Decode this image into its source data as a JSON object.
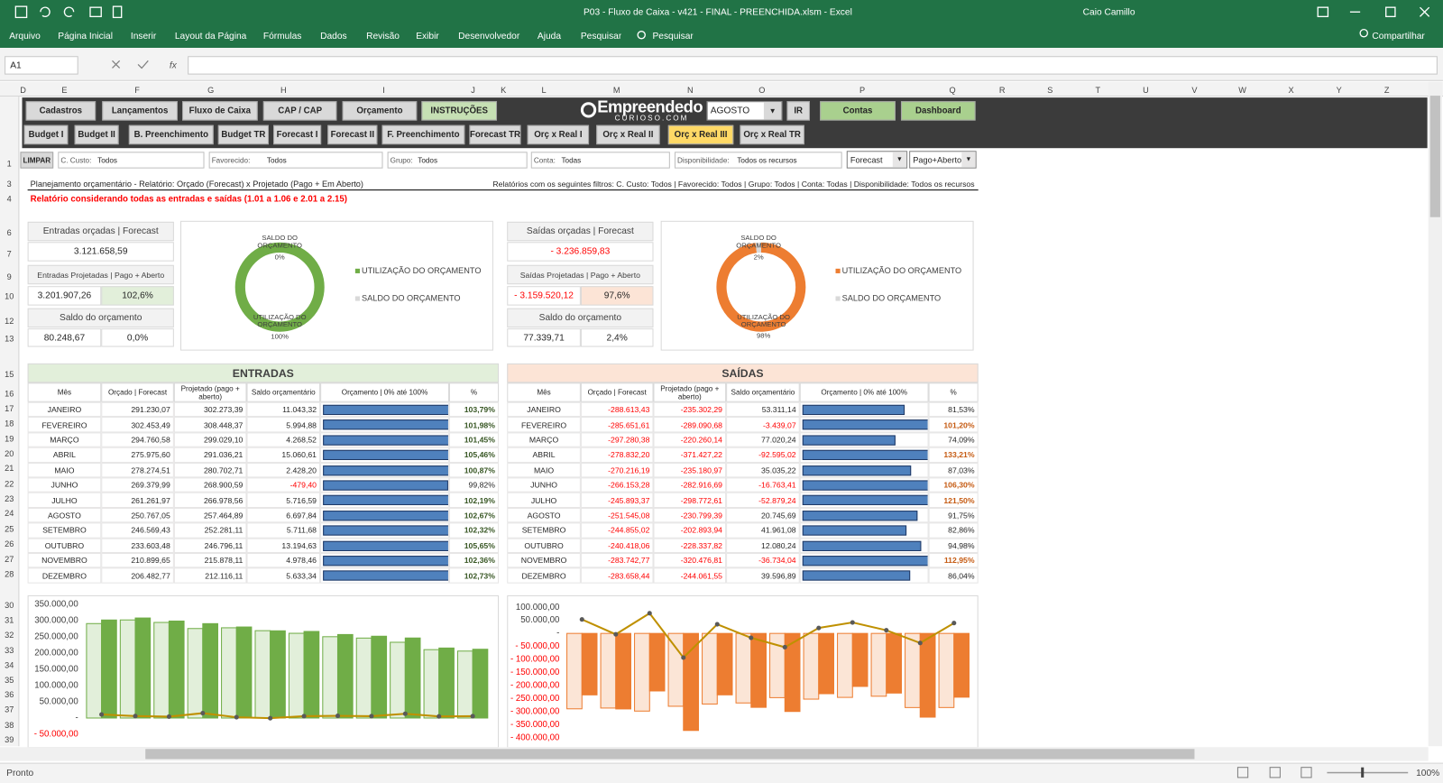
{
  "window": {
    "title": "P03 - Fluxo de Caixa - v421 - FINAL - PREENCHIDA.xlsm - Excel",
    "user": "Caio Camillo"
  },
  "ribbon": {
    "tabs": [
      "Arquivo",
      "Página Inicial",
      "Inserir",
      "Layout da Página",
      "Fórmulas",
      "Dados",
      "Revisão",
      "Exibir",
      "Desenvolvedor",
      "Ajuda",
      "Pesquisar",
      "Pesquisar"
    ],
    "share": "Compartilhar"
  },
  "formula_bar": {
    "name_box": "A1",
    "fx": "fx"
  },
  "sheet": {
    "columns": [
      "D",
      "E",
      "F",
      "G",
      "H",
      "I",
      "J",
      "K",
      "L",
      "M",
      "N",
      "O",
      "P",
      "Q",
      "R",
      "S",
      "T",
      "U",
      "V",
      "W",
      "X",
      "Y",
      "Z"
    ],
    "rows": [
      1,
      3,
      4,
      6,
      7,
      9,
      10,
      12,
      13,
      15,
      16,
      17,
      18,
      19,
      20,
      21,
      22,
      23,
      24,
      25,
      26,
      27,
      28,
      30,
      31,
      32,
      33,
      34,
      35,
      36,
      37,
      38,
      39
    ]
  },
  "nav": {
    "row1": [
      "Cadastros",
      "Lançamentos",
      "Fluxo de Caixa",
      "CAP / CAP",
      "Orçamento",
      "INSTRUÇÕES"
    ],
    "logo": "Empreendedor",
    "logo_sub": "CURIOSO.COM",
    "month": "AGOSTO",
    "go": "IR",
    "row1_right": [
      "Contas",
      "Dashboard"
    ],
    "row2": [
      "Budget I",
      "Budget II",
      "B. Preenchimento",
      "Budget TR",
      "Forecast I",
      "Forecast II",
      "F. Preenchimento",
      "Forecast TR",
      "Orç x Real I",
      "Orç x Real II",
      "Orç x Real III",
      "Orç x Real TR"
    ]
  },
  "filters": {
    "clear": "LIMPAR",
    "items": [
      {
        "label": "C. Custo:",
        "value": "Todos"
      },
      {
        "label": "Favorecido:",
        "value": "Todos"
      },
      {
        "label": "Grupo:",
        "value": "Todos"
      },
      {
        "label": "Conta:",
        "value": "Todas"
      },
      {
        "label": "Disponibilidade:",
        "value": "Todos os recursos"
      }
    ],
    "type": "Forecast",
    "status": "Pago+Aberto"
  },
  "report": {
    "title": "Planejamento orçamentário - Relatório: Orçado (Forecast) x Projetado (Pago + Em Aberto)",
    "filters_note": "Relatórios com os seguintes filtros: C. Custo: Todos | Favorecido: Todos | Grupo: Todos | Conta: Todas | Disponibilidade: Todos os recursos",
    "note": "Relatório considerando todas as entradas e saídas (1.01 a 1.06 e 2.01 a 2.15)"
  },
  "entradas_summary": {
    "budget_label": "Entradas orçadas | Forecast",
    "budget": "3.121.658,59",
    "projected_label": "Entradas Projetadas | Pago + Aberto",
    "projected": "3.201.907,26",
    "projected_pct": "102,6%",
    "balance_label": "Saldo do orçamento",
    "balance": "80.248,67",
    "balance_pct": "0,0%"
  },
  "saidas_summary": {
    "budget_label": "Saídas orçadas | Forecast",
    "budget": "- 3.236.859,83",
    "projected_label": "Saídas Projetadas | Pago + Aberto",
    "projected": "- 3.159.520,12",
    "projected_pct": "97,6%",
    "balance_label": "Saldo do orçamento",
    "balance": "77.339,71",
    "balance_pct": "2,4%"
  },
  "entradas_table": {
    "title": "ENTRADAS",
    "headers": [
      "Mês",
      "Orçado | Forecast",
      "Projetado (pago + aberto)",
      "Saldo orçamentário",
      "Orçamento | 0% até 100%",
      "%"
    ],
    "rows": [
      [
        "JANEIRO",
        "291.230,07",
        "302.273,39",
        "11.043,32",
        "103,79%"
      ],
      [
        "FEVEREIRO",
        "302.453,49",
        "308.448,37",
        "5.994,88",
        "101,98%"
      ],
      [
        "MARÇO",
        "294.760,58",
        "299.029,10",
        "4.268,52",
        "101,45%"
      ],
      [
        "ABRIL",
        "275.975,60",
        "291.036,21",
        "15.060,61",
        "105,46%"
      ],
      [
        "MAIO",
        "278.274,51",
        "280.702,71",
        "2.428,20",
        "100,87%"
      ],
      [
        "JUNHO",
        "269.379,99",
        "268.900,59",
        "-479,40",
        "99,82%"
      ],
      [
        "JULHO",
        "261.261,97",
        "266.978,56",
        "5.716,59",
        "102,19%"
      ],
      [
        "AGOSTO",
        "250.767,05",
        "257.464,89",
        "6.697,84",
        "102,67%"
      ],
      [
        "SETEMBRO",
        "246.569,43",
        "252.281,11",
        "5.711,68",
        "102,32%"
      ],
      [
        "OUTUBRO",
        "233.603,48",
        "246.796,11",
        "13.194,63",
        "105,65%"
      ],
      [
        "NOVEMBRO",
        "210.899,65",
        "215.878,11",
        "4.978,46",
        "102,36%"
      ],
      [
        "DEZEMBRO",
        "206.482,77",
        "212.116,11",
        "5.633,34",
        "102,73%"
      ]
    ],
    "bars": [
      103.79,
      101.98,
      101.45,
      105.46,
      100.87,
      99.82,
      102.19,
      102.67,
      102.32,
      105.65,
      102.36,
      102.73
    ]
  },
  "saidas_table": {
    "title": "SAÍDAS",
    "headers": [
      "Mês",
      "Orçado | Forecast",
      "Projetado (pago + aberto)",
      "Saldo orçamentário",
      "Orçamento | 0% até 100%",
      "%"
    ],
    "rows": [
      [
        "JANEIRO",
        "-288.613,43",
        "-235.302,29",
        "53.311,14",
        "81,53%"
      ],
      [
        "FEVEREIRO",
        "-285.651,61",
        "-289.090,68",
        "-3.439,07",
        "101,20%"
      ],
      [
        "MARÇO",
        "-297.280,38",
        "-220.260,14",
        "77.020,24",
        "74,09%"
      ],
      [
        "ABRIL",
        "-278.832,20",
        "-371.427,22",
        "-92.595,02",
        "133,21%"
      ],
      [
        "MAIO",
        "-270.216,19",
        "-235.180,97",
        "35.035,22",
        "87,03%"
      ],
      [
        "JUNHO",
        "-266.153,28",
        "-282.916,69",
        "-16.763,41",
        "106,30%"
      ],
      [
        "JULHO",
        "-245.893,37",
        "-298.772,61",
        "-52.879,24",
        "121,50%"
      ],
      [
        "AGOSTO",
        "-251.545,08",
        "-230.799,39",
        "20.745,69",
        "91,75%"
      ],
      [
        "SETEMBRO",
        "-244.855,02",
        "-202.893,94",
        "41.961,08",
        "82,86%"
      ],
      [
        "OUTUBRO",
        "-240.418,06",
        "-228.337,82",
        "12.080,24",
        "94,98%"
      ],
      [
        "NOVEMBRO",
        "-283.742,77",
        "-320.476,81",
        "-36.734,04",
        "112,95%"
      ],
      [
        "DEZEMBRO",
        "-283.658,44",
        "-244.061,55",
        "39.596,89",
        "86,04%"
      ]
    ],
    "bars": [
      81.53,
      101.2,
      74.09,
      133.21,
      87.03,
      106.3,
      121.5,
      91.75,
      82.86,
      94.98,
      112.95,
      86.04
    ]
  },
  "chart_data": [
    {
      "type": "pie",
      "donut": true,
      "categories": [
        "UTILIZAÇÃO DO ORÇAMENTO",
        "SALDO DO ORÇAMENTO"
      ],
      "values": [
        100,
        0
      ],
      "value_labels": [
        "100%",
        "0%"
      ],
      "colors": [
        "#70ad47",
        "#d9d9d9"
      ]
    },
    {
      "type": "pie",
      "donut": true,
      "categories": [
        "UTILIZAÇÃO DO ORÇAMENTO",
        "SALDO DO ORÇAMENTO"
      ],
      "values": [
        98,
        2
      ],
      "value_labels": [
        "98%",
        "2%"
      ],
      "colors": [
        "#ed7d31",
        "#d9d9d9"
      ]
    },
    {
      "type": "bar",
      "categories": [
        null,
        null,
        null,
        null,
        null,
        null,
        null,
        null,
        null,
        null,
        null,
        null
      ],
      "series": [
        {
          "type": "bar",
          "color": "#e2efda",
          "edgecolor": "#70ad47",
          "values": [
            291230.07,
            302453.49,
            294760.58,
            275975.6,
            278274.51,
            269379.99,
            261261.97,
            250767.05,
            246569.43,
            233603.48,
            210899.65,
            206482.77
          ]
        },
        {
          "type": "bar",
          "color": "#70ad47",
          "edgecolor": "#70ad47",
          "values": [
            302273.39,
            308448.37,
            299029.1,
            291036.21,
            280702.71,
            268900.59,
            266978.56,
            257464.89,
            252281.11,
            246796.11,
            215878.11,
            212116.11
          ]
        },
        {
          "type": "line",
          "color": "#bf9000",
          "values": [
            11043.32,
            5994.88,
            4268.52,
            15060.61,
            2428.2,
            -479.4,
            5716.59,
            6697.84,
            5711.68,
            13194.63,
            4978.46,
            5633.34
          ]
        }
      ],
      "ylim": [
        -50000,
        350000
      ],
      "yticks": [
        {
          "value": 350000,
          "label": "350.000,00"
        },
        {
          "value": 300000,
          "label": "300.000,00"
        },
        {
          "value": 250000,
          "label": "250.000,00"
        },
        {
          "value": 200000,
          "label": "200.000,00"
        },
        {
          "value": 150000,
          "label": "150.000,00"
        },
        {
          "value": 100000,
          "label": "100.000,00"
        },
        {
          "value": 50000,
          "label": "50.000,00"
        },
        {
          "value": 0,
          "label": "-"
        },
        {
          "value": -50000,
          "label": "- 50.000,00"
        }
      ]
    },
    {
      "type": "bar",
      "categories": [
        null,
        null,
        null,
        null,
        null,
        null,
        null,
        null,
        null,
        null,
        null,
        null
      ],
      "series": [
        {
          "type": "bar",
          "color": "#fbe5d6",
          "edgecolor": "#ed7d31",
          "values": [
            -288613.43,
            -285651.61,
            -297280.38,
            -278832.2,
            -270216.19,
            -266153.28,
            -245893.37,
            -251545.08,
            -244855.02,
            -240418.06,
            -283742.77,
            -283658.44
          ]
        },
        {
          "type": "bar",
          "color": "#ed7d31",
          "edgecolor": "#ed7d31",
          "values": [
            -235302.29,
            -289090.68,
            -220260.14,
            -371427.22,
            -235180.97,
            -282916.69,
            -298772.61,
            -230799.39,
            -202893.94,
            -228337.82,
            -320476.81,
            -244061.55
          ]
        },
        {
          "type": "line",
          "color": "#bf9000",
          "values": [
            53311.14,
            -3439.07,
            77020.24,
            -92595.02,
            35035.22,
            -16763.41,
            -52879.24,
            20745.69,
            41961.08,
            12080.24,
            -36734.04,
            39596.89
          ]
        }
      ],
      "ylim": [
        -400000,
        100000
      ],
      "yticks": [
        {
          "value": 100000,
          "label": "100.000,00"
        },
        {
          "value": 50000,
          "label": "50.000,00"
        },
        {
          "value": 0,
          "label": "-"
        },
        {
          "value": -50000,
          "label": "- 50.000,00"
        },
        {
          "value": -100000,
          "label": "- 100.000,00"
        },
        {
          "value": -150000,
          "label": "- 150.000,00"
        },
        {
          "value": -200000,
          "label": "- 200.000,00"
        },
        {
          "value": -250000,
          "label": "- 250.000,00"
        },
        {
          "value": -300000,
          "label": "- 300.000,00"
        },
        {
          "value": -350000,
          "label": "- 350.000,00"
        },
        {
          "value": -400000,
          "label": "- 400.000,00"
        }
      ]
    }
  ],
  "status": {
    "ready": "Pronto",
    "zoom": "100%"
  }
}
